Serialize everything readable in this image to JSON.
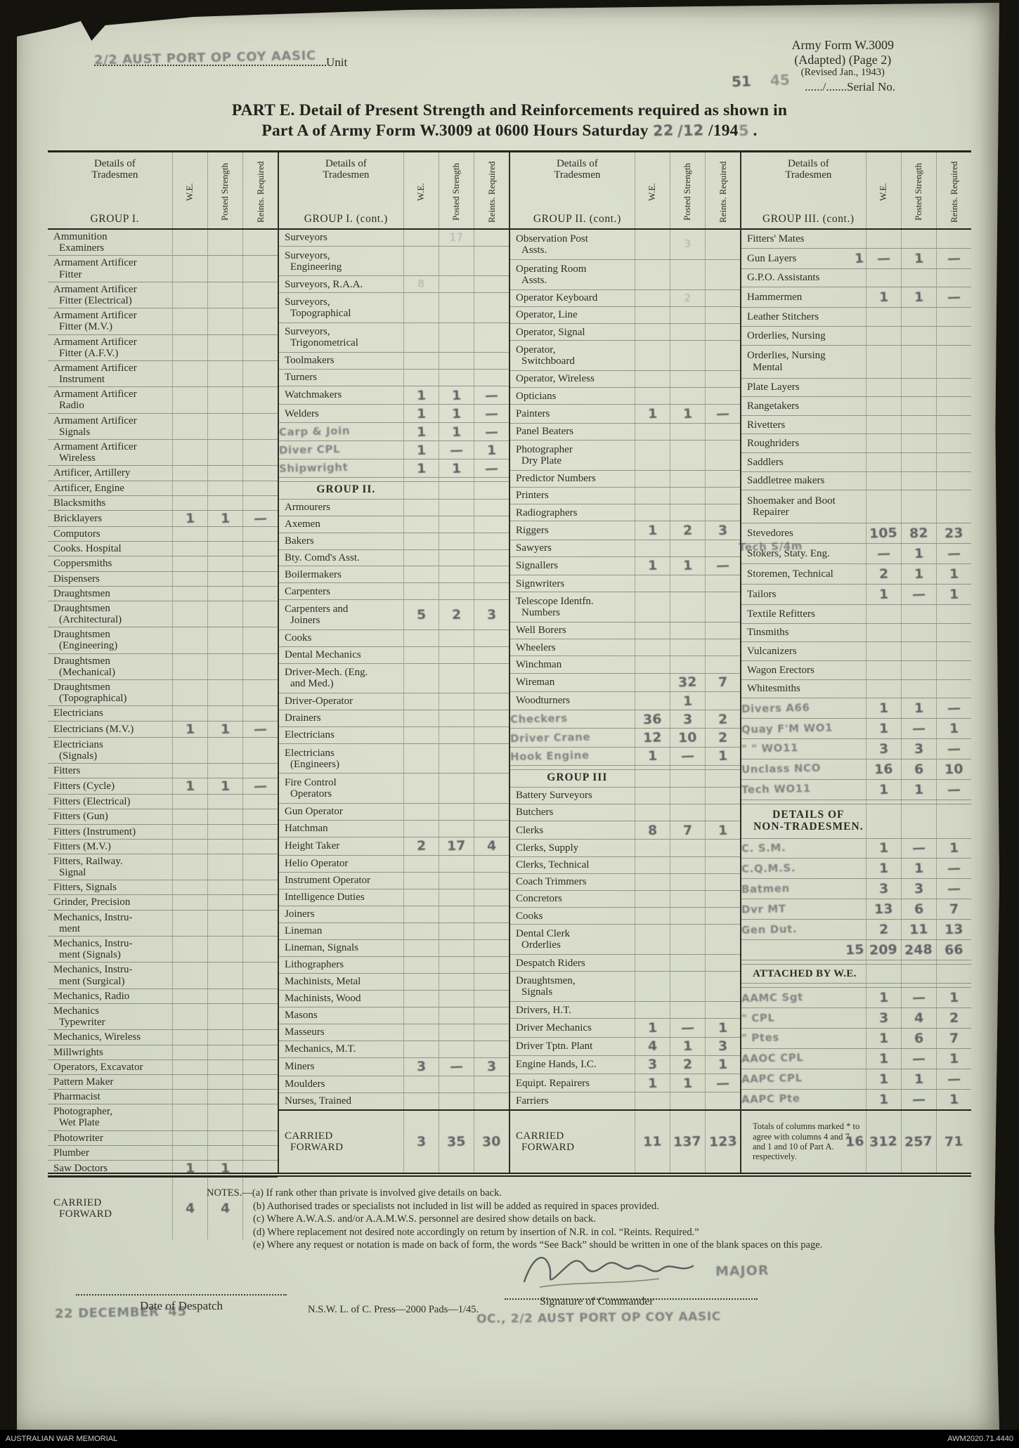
{
  "page": {
    "unit_stamp": "2/2 AUST PORT OP COY AASIC",
    "unit_label": "Unit",
    "form_name": "Army Form W.3009",
    "form_sub": "(Adapted) (Page 2)",
    "form_rev": "(Revised Jan., 1943)",
    "serial_stamp_left": "51",
    "serial_stamp_right": "45",
    "serial_label": "....../.......Serial No.",
    "title_line1": "PART E.  Detail of Present Strength and Reinforcements required as shown in",
    "title_line2": "Part A of Army Form W.3009 at 0600 Hours Saturday",
    "date_stamp_day": "22",
    "date_stamp_month": "/12",
    "title_year": "/194",
    "date_stamp_year": "5",
    "title_period": " ."
  },
  "table": {
    "details_hdr": "Details of\nTradesmen",
    "col_we": "W.E.",
    "col_ps": "Posted\nStrength",
    "col_rr": "Reints.\nRequired",
    "cf_label": "CARRIED\nFORWARD",
    "totals_note": "Totals of columns marked * to agree with columns 4 and 7, and 1 and 10 of Part A. respectively.",
    "sections": [
      {
        "group": "GROUP I.",
        "rows": [
          {
            "l": "Ammunition\nExaminers"
          },
          {
            "l": "Armament Artificer\nFitter"
          },
          {
            "l": "Armament Artificer\nFitter (Electrical)"
          },
          {
            "l": "Armament Artificer\nFitter (M.V.)"
          },
          {
            "l": "Armament Artificer\nFitter (A.F.V.)"
          },
          {
            "l": "Armament Artificer\nInstrument"
          },
          {
            "l": "Armament Artificer\nRadio"
          },
          {
            "l": "Armament Artificer\nSignals"
          },
          {
            "l": "Armament Artificer\nWireless"
          },
          {
            "l": "Artificer, Artillery"
          },
          {
            "l": "Artificer, Engine"
          },
          {
            "l": "Blacksmiths"
          },
          {
            "l": "Bricklayers",
            "we": "1",
            "ps": "1",
            "rr": "—"
          },
          {
            "l": "Computors"
          },
          {
            "l": "Cooks. Hospital"
          },
          {
            "l": "Coppersmiths"
          },
          {
            "l": "Dispensers"
          },
          {
            "l": "Draughtsmen"
          },
          {
            "l": "Draughtsmen\n(Architectural)"
          },
          {
            "l": "Draughtsmen\n(Engineering)"
          },
          {
            "l": "Draughtsmen\n(Mechanical)"
          },
          {
            "l": "Draughtsmen\n(Topographical)"
          },
          {
            "l": "Electricians"
          },
          {
            "l": "Electricians  (M.V.)",
            "we": "1",
            "ps": "1",
            "rr": "—"
          },
          {
            "l": "Electricians\n(Signals)"
          },
          {
            "l": "Fitters"
          },
          {
            "l": "Fitters  (Cycle)",
            "we": "1",
            "ps": "1",
            "rr": "—"
          },
          {
            "l": "Fitters  (Electrical)"
          },
          {
            "l": "Fitters  (Gun)"
          },
          {
            "l": "Fitters  (Instrument)"
          },
          {
            "l": "Fitters  (M.V.)"
          },
          {
            "l": "Fitters,  Railway.\nSignal"
          },
          {
            "l": "Fitters,  Signals"
          },
          {
            "l": "Grinder,  Precision"
          },
          {
            "l": "Mechanics,  Instru-\nment"
          },
          {
            "l": "Mechanics,  Instru-\nment  (Signals)"
          },
          {
            "l": "Mechanics,  Instru-\nment  (Surgical)"
          },
          {
            "l": "Mechanics,  Radio"
          },
          {
            "l": "Mechanics\nTypewriter"
          },
          {
            "l": "Mechanics,  Wireless"
          },
          {
            "l": "Millwrights"
          },
          {
            "l": "Operators, Excavator"
          },
          {
            "l": "Pattern  Maker"
          },
          {
            "l": "Pharmacist"
          },
          {
            "l": "Photographer,\nWet Plate"
          },
          {
            "l": "Photowriter"
          },
          {
            "l": "Plumber"
          },
          {
            "l": "Saw  Doctors",
            "we": "1",
            "ps": "1"
          },
          {
            "t": "cf",
            "we": "4",
            "ps": "4"
          }
        ]
      },
      {
        "group": "GROUP I.  (cont.)",
        "rows": [
          {
            "l": "Surveyors",
            "ps": "17",
            "ns": "p"
          },
          {
            "l": "Surveyors,\nEngineering"
          },
          {
            "l": "Surveyors,  R.A.A.",
            "we": "8",
            "ns": "p"
          },
          {
            "l": "Surveyors,\nTopographical"
          },
          {
            "l": "Surveyors,\nTrigonometrical"
          },
          {
            "l": "Toolmakers"
          },
          {
            "l": "Turners"
          },
          {
            "l": "Watchmakers",
            "we": "1",
            "ps": "1",
            "rr": "—"
          },
          {
            "l": "Welders",
            "we": "1",
            "ps": "1",
            "rr": "—"
          },
          {
            "l": "Carp & Join",
            "t": "s",
            "we": "1",
            "ps": "1",
            "rr": "—"
          },
          {
            "l": "Diver CPL",
            "t": "s",
            "we": "1",
            "ps": "—",
            "rr": "1"
          },
          {
            "l": "Shipwright",
            "t": "s",
            "we": "1",
            "ps": "1",
            "rr": "—"
          },
          {
            "t": "b"
          },
          {
            "l": "GROUP II.",
            "t": "h"
          },
          {
            "l": "Armourers"
          },
          {
            "l": "Axemen"
          },
          {
            "l": "Bakers"
          },
          {
            "l": "Bty.  Comd's  Asst."
          },
          {
            "l": "Boilermakers"
          },
          {
            "l": "Carpenters"
          },
          {
            "l": "Carpenters  and\nJoiners",
            "we": "5",
            "ps": "2",
            "rr": "3"
          },
          {
            "l": "Cooks"
          },
          {
            "l": "Dental  Mechanics"
          },
          {
            "l": "Driver-Mech.  (Eng.\nand  Med.)"
          },
          {
            "l": "Driver-Operator"
          },
          {
            "l": "Drainers"
          },
          {
            "l": "Electricians"
          },
          {
            "l": "Electricians\n(Engineers)"
          },
          {
            "l": "Fire  Control\nOperators"
          },
          {
            "l": "Gun  Operator"
          },
          {
            "l": "Hatchman"
          },
          {
            "l": "Height  Taker",
            "we": "2",
            "ps": "17",
            "rr": "4"
          },
          {
            "l": "Helio  Operator"
          },
          {
            "l": "Instrument  Operator"
          },
          {
            "l": "Intelligence  Duties"
          },
          {
            "l": "Joiners"
          },
          {
            "l": "Lineman"
          },
          {
            "l": "Lineman, Signals"
          },
          {
            "l": "Lithographers"
          },
          {
            "l": "Machinists,  Metal"
          },
          {
            "l": "Machinists,  Wood"
          },
          {
            "l": "Masons"
          },
          {
            "l": "Masseurs"
          },
          {
            "l": "Mechanics,  M.T."
          },
          {
            "l": "Miners",
            "we": "3",
            "ps": "—",
            "rr": "3"
          },
          {
            "l": "Moulders"
          },
          {
            "l": "Nurses,  Trained"
          },
          {
            "t": "cf",
            "we": "3",
            "ps": "35",
            "rr": "30"
          }
        ]
      },
      {
        "group": "GROUP II.  (cont.)",
        "rows": [
          {
            "l": "Observation  Post\nAssts.",
            "ps": "3",
            "ns": "p"
          },
          {
            "l": "Operating  Room\nAssts."
          },
          {
            "l": "Operator  Keyboard",
            "ps": "2",
            "ns": "p"
          },
          {
            "l": "Operator,  Line"
          },
          {
            "l": "Operator,  Signal"
          },
          {
            "l": "Operator,\nSwitchboard"
          },
          {
            "l": "Operator,  Wireless"
          },
          {
            "l": "Opticians"
          },
          {
            "l": "Painters",
            "we": "1",
            "ps": "1",
            "rr": "—"
          },
          {
            "l": "Panel  Beaters"
          },
          {
            "l": "Photographer\nDry  Plate"
          },
          {
            "l": "Predictor  Numbers"
          },
          {
            "l": "Printers"
          },
          {
            "l": "Radiographers"
          },
          {
            "l": "Riggers",
            "we": "1",
            "ps": "2",
            "rr": "3"
          },
          {
            "l": "Sawyers"
          },
          {
            "l": "Signallers",
            "we": "1",
            "ps": "1",
            "rr": "—"
          },
          {
            "l": "Signwriters"
          },
          {
            "l": "Telescope  Identfn.\nNumbers"
          },
          {
            "l": "Well  Borers"
          },
          {
            "l": "Wheelers"
          },
          {
            "l": "Winchman"
          },
          {
            "l": "Wireman",
            "ps": "32",
            "rr": "7"
          },
          {
            "l": "Woodturners",
            "ps": "1"
          },
          {
            "l": "Checkers",
            "t": "s",
            "we": "36",
            "ps": "3",
            "rr": "2"
          },
          {
            "l": "Driver Crane",
            "t": "s",
            "we": "12",
            "ps": "10",
            "rr": "2"
          },
          {
            "l": "Hook Engine",
            "t": "s",
            "we": "1",
            "ps": "—",
            "rr": "1"
          },
          {
            "t": "b"
          },
          {
            "l": "GROUP III",
            "t": "h"
          },
          {
            "l": "Battery  Surveyors"
          },
          {
            "l": "Butchers"
          },
          {
            "l": "Clerks",
            "we": "8",
            "ps": "7",
            "rr": "1"
          },
          {
            "l": "Clerks,  Supply"
          },
          {
            "l": "Clerks,  Technical"
          },
          {
            "l": "Coach  Trimmers"
          },
          {
            "l": "Concretors"
          },
          {
            "l": "Cooks"
          },
          {
            "l": "Dental  Clerk\nOrderlies"
          },
          {
            "l": "Despatch  Riders"
          },
          {
            "l": "Draughtsmen,\nSignals"
          },
          {
            "l": "Drivers,  H.T."
          },
          {
            "l": "Driver  Mechanics",
            "we": "1",
            "ps": "—",
            "rr": "1"
          },
          {
            "l": "Driver  Tptn.  Plant",
            "we": "4",
            "ps": "1",
            "rr": "3"
          },
          {
            "l": "Engine  Hands,  I.C.",
            "we": "3",
            "ps": "2",
            "rr": "1"
          },
          {
            "l": "Equipt.  Repairers",
            "we": "1",
            "ps": "1",
            "rr": "—"
          },
          {
            "l": "Farriers"
          },
          {
            "t": "cf",
            "we": "11",
            "ps": "137",
            "rr": "123"
          }
        ]
      },
      {
        "group": "GROUP III.  (cont.)",
        "rows": [
          {
            "l": "Fitters'  Mates"
          },
          {
            "l": "Gun  Layers",
            "ln": "1",
            "we": "—",
            "ps": "1",
            "rr": "—"
          },
          {
            "l": "G.P.O.  Assistants"
          },
          {
            "l": "Hammermen",
            "we": "1",
            "ps": "1",
            "rr": "—"
          },
          {
            "l": "Leather  Stitchers"
          },
          {
            "l": "Orderlies,  Nursing"
          },
          {
            "l": "Orderlies,  Nursing\nMental"
          },
          {
            "l": "Plate  Layers"
          },
          {
            "l": "Rangetakers"
          },
          {
            "l": "Rivetters"
          },
          {
            "l": "Roughriders"
          },
          {
            "l": "Saddlers"
          },
          {
            "l": "Saddletree  makers"
          },
          {
            "l": "Shoemaker and Boot\nRepairer"
          },
          {
            "l": "Stevedores",
            "we": "105",
            "ps": "82",
            "rr": "23"
          },
          {
            "l": "Stokers,  Staty.  Eng.",
            "ov": "Tech S/4m",
            "we": "—",
            "ps": "1",
            "rr": "—"
          },
          {
            "l": "Storemen,  Technical",
            "we": "2",
            "ps": "1",
            "rr": "1"
          },
          {
            "l": "Tailors",
            "we": "1",
            "ps": "—",
            "rr": "1"
          },
          {
            "l": "Textile  Refitters"
          },
          {
            "l": "Tinsmiths"
          },
          {
            "l": "Vulcanizers"
          },
          {
            "l": "Wagon  Erectors"
          },
          {
            "l": "Whitesmiths"
          },
          {
            "l": "Divers A66",
            "t": "s",
            "we": "1",
            "ps": "1",
            "rr": "—"
          },
          {
            "l": "Quay F'M WO1",
            "t": "s",
            "we": "1",
            "ps": "—",
            "rr": "1"
          },
          {
            "l": "\"   \"   WO11",
            "t": "s",
            "we": "3",
            "ps": "3",
            "rr": "—"
          },
          {
            "l": "Unclass NCO",
            "t": "s",
            "we": "16",
            "ps": "6",
            "rr": "10"
          },
          {
            "l": "Tech WO11",
            "t": "s",
            "we": "1",
            "ps": "1",
            "rr": "—"
          },
          {
            "t": "b"
          },
          {
            "l": "DETAILS OF\nNON-TRADESMEN.",
            "t": "h"
          },
          {
            "l": "C. S.M.",
            "t": "s",
            "we": "1",
            "ps": "—",
            "rr": "1"
          },
          {
            "l": "C.Q.M.S.",
            "t": "s",
            "we": "1",
            "ps": "1",
            "rr": "—"
          },
          {
            "l": "Batmen",
            "t": "s",
            "we": "3",
            "ps": "3",
            "rr": "—"
          },
          {
            "l": "Dvr MT",
            "t": "s",
            "we": "13",
            "ps": "6",
            "rr": "7"
          },
          {
            "l": "Gen Dut.",
            "t": "s",
            "we": "2",
            "ps": "11",
            "rr": "13"
          },
          {
            "l": "",
            "t": "s",
            "ln": "15",
            "we": "209",
            "ps": "248",
            "rr": "66"
          },
          {
            "t": "b"
          },
          {
            "l": "ATTACHED  BY  W.E.",
            "t": "h2"
          },
          {
            "t": "b"
          },
          {
            "l": "AAMC  Sgt",
            "t": "s",
            "we": "1",
            "ps": "—",
            "rr": "1"
          },
          {
            "l": "\"   CPL",
            "t": "s",
            "we": "3",
            "ps": "4",
            "rr": "2"
          },
          {
            "l": "\"   Ptes",
            "t": "s",
            "we": "1",
            "ps": "6",
            "rr": "7"
          },
          {
            "l": "AAOC  CPL",
            "t": "s",
            "we": "1",
            "ps": "—",
            "rr": "1"
          },
          {
            "l": "AAPC  CPL",
            "t": "s",
            "we": "1",
            "ps": "1",
            "rr": "—"
          },
          {
            "l": "AAPC  Pte",
            "t": "s",
            "we": "1",
            "ps": "—",
            "rr": "1"
          },
          {
            "t": "cf",
            "note": true,
            "ln": "16",
            "we": "312",
            "ps": "257",
            "rr": "71"
          }
        ]
      }
    ]
  },
  "notes": {
    "label": "NOTES.—",
    "items": [
      "(a)  If rank other than private is involved give details on back.",
      "(b)  Authorised trades or specialists not included in list will be added as required in spaces provided.",
      "(c)  Where  A.W.A.S.  and/or  A.A.M.W.S.  personnel  are  desired  show  details  on  back.",
      "(d)  Where replacement not desired note accordingly on return by insertion of N.R. in col. “Reints. Required.”",
      "(e)  Where any request or notation is made on back of form, the words “See Back” should be written in one of the blank spaces on this page."
    ]
  },
  "footer": {
    "despatch_label": "Date of Despatch",
    "despatch_stamp": "22 DECEMBER '45",
    "press_line": "N.S.W.  L.  of  C.  Press—2000  Pads—1/45.",
    "oc_stamp": "OC.,  2/2 AUST PORT OP COY AASIC",
    "signature_label": "Signature of Commander",
    "rank_stamp": "MAJOR"
  },
  "awm_bar": {
    "left": "AUSTRALIAN WAR MEMORIAL",
    "right": "AWM2020.71.4440"
  }
}
